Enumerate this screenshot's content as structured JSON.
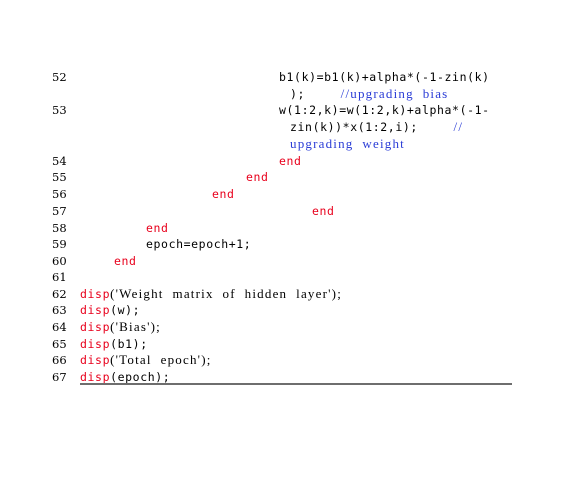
{
  "listing": {
    "lines": [
      {
        "num": "52",
        "parts": [
          {
            "t": "b1(k)=b1(k)+alpha*(-1-zin(k)",
            "c": "bl",
            "f": "tt"
          }
        ]
      },
      {
        "num": "",
        "parts": [
          {
            "t": ");",
            "c": "bl",
            "f": "tt"
          },
          {
            "t": "        //upgrading  bias",
            "c": "cm",
            "f": "rm"
          }
        ]
      },
      {
        "num": "53",
        "parts": [
          {
            "t": "w(1:2,k)=w(1:2,k)+alpha*(-1-",
            "c": "bl",
            "f": "tt"
          }
        ]
      },
      {
        "num": "",
        "parts": [
          {
            "t": "zin(k))*x(1:2,i);",
            "c": "bl",
            "f": "tt"
          },
          {
            "t": "        //",
            "c": "cm",
            "f": "rm"
          }
        ]
      },
      {
        "num": "",
        "parts": [
          {
            "t": "upgrading  weight",
            "c": "cm",
            "f": "rm"
          }
        ]
      },
      {
        "num": "54",
        "parts": [
          {
            "t": "end",
            "c": "kw",
            "f": "tt"
          }
        ]
      },
      {
        "num": "55",
        "parts": [
          {
            "t": "end",
            "c": "kw",
            "f": "tt"
          }
        ]
      },
      {
        "num": "56",
        "parts": [
          {
            "t": "end",
            "c": "kw",
            "f": "tt"
          }
        ]
      },
      {
        "num": "57",
        "parts": [
          {
            "t": "end",
            "c": "kw",
            "f": "tt"
          }
        ]
      },
      {
        "num": "58",
        "parts": [
          {
            "t": "end",
            "c": "kw",
            "f": "tt"
          }
        ]
      },
      {
        "num": "59",
        "parts": [
          {
            "t": "epoch=epoch+1;",
            "c": "bl",
            "f": "tt"
          }
        ]
      },
      {
        "num": "60",
        "parts": [
          {
            "t": "end",
            "c": "kw",
            "f": "tt"
          }
        ]
      },
      {
        "num": "61",
        "parts": []
      },
      {
        "num": "62",
        "parts": [
          {
            "t": "disp",
            "c": "kw",
            "f": "tt"
          },
          {
            "t": "('Weight  matrix  of  hidden  layer');",
            "c": "bl",
            "f": "rm"
          }
        ]
      },
      {
        "num": "63",
        "parts": [
          {
            "t": "disp",
            "c": "kw",
            "f": "tt"
          },
          {
            "t": "(w);",
            "c": "bl",
            "f": "tt"
          }
        ]
      },
      {
        "num": "64",
        "parts": [
          {
            "t": "disp",
            "c": "kw",
            "f": "tt"
          },
          {
            "t": "('Bias');",
            "c": "bl",
            "f": "rm"
          }
        ]
      },
      {
        "num": "65",
        "parts": [
          {
            "t": "disp",
            "c": "kw",
            "f": "tt"
          },
          {
            "t": "(b1);",
            "c": "bl",
            "f": "tt"
          }
        ]
      },
      {
        "num": "66",
        "parts": [
          {
            "t": "disp",
            "c": "kw",
            "f": "tt"
          },
          {
            "t": "('Total  epoch');",
            "c": "bl",
            "f": "rm"
          }
        ]
      },
      {
        "num": "67",
        "parts": [
          {
            "t": "disp",
            "c": "kw",
            "f": "tt"
          },
          {
            "t": "(epoch);",
            "c": "bl",
            "f": "tt"
          }
        ]
      }
    ]
  }
}
